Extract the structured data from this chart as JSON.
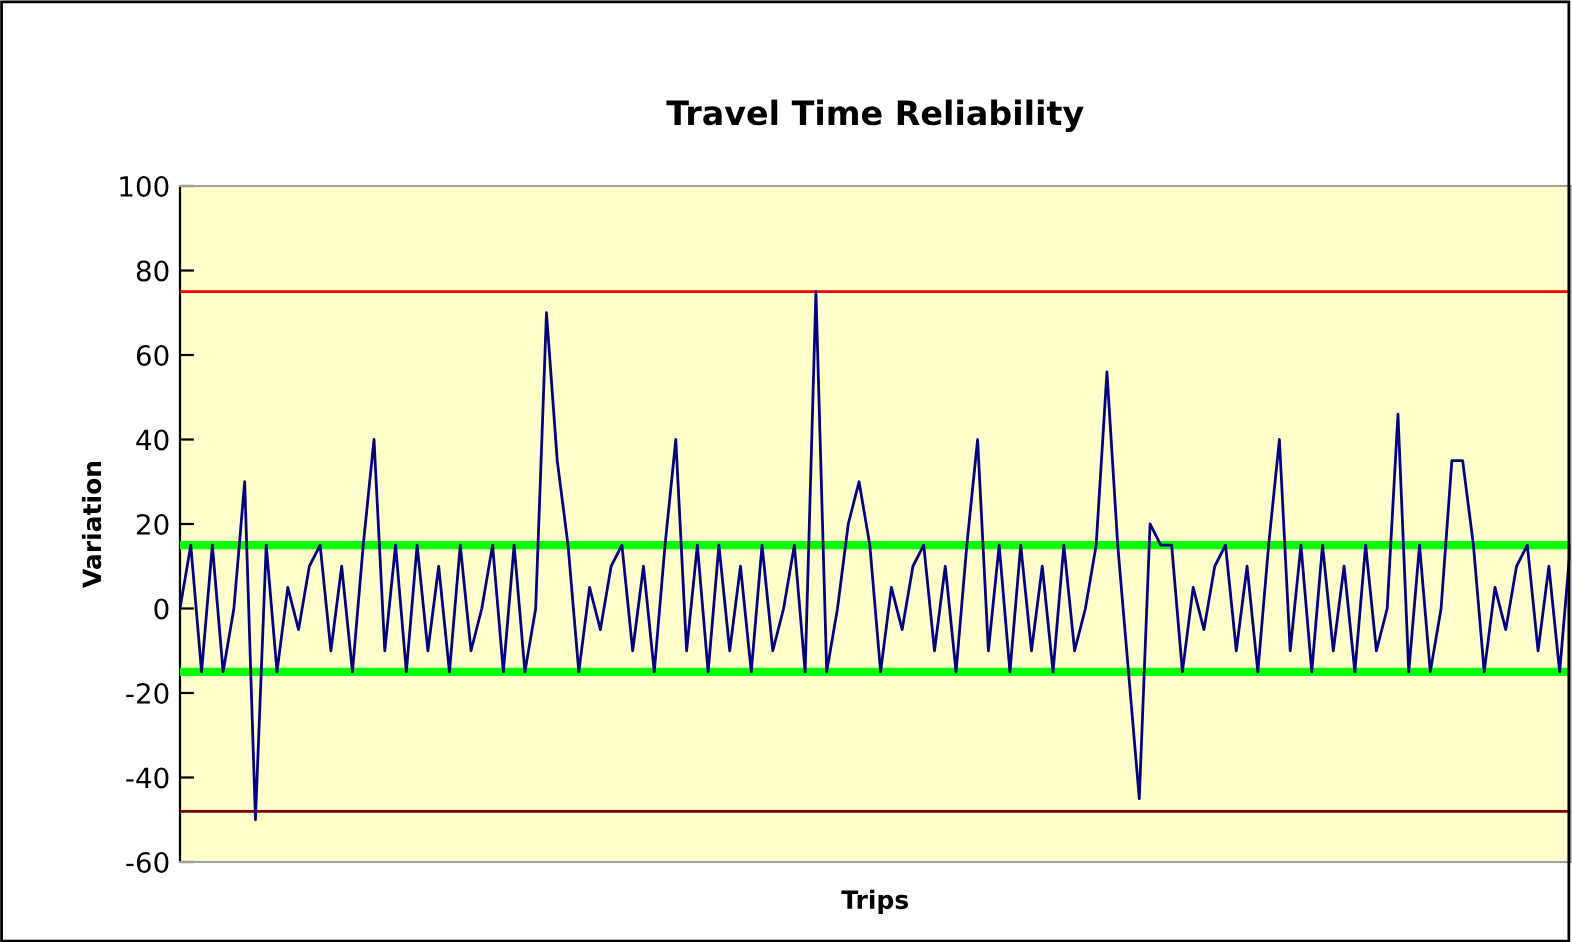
{
  "chart_data": {
    "type": "line",
    "title": "Travel Time Reliability",
    "xlabel": "Trips",
    "ylabel": "Variation",
    "categories": [
      null,
      null,
      null,
      null,
      null,
      null,
      null,
      null,
      null,
      null,
      null,
      null,
      null,
      null,
      null,
      null,
      null,
      null,
      null,
      null,
      null,
      null,
      null,
      null,
      null,
      null,
      null,
      null,
      null,
      null,
      null,
      null,
      null,
      null,
      null,
      null,
      null,
      null,
      null,
      null,
      null,
      null,
      null,
      null,
      null,
      null,
      null,
      null,
      null,
      null,
      null,
      null,
      null,
      null,
      null,
      null,
      null,
      null,
      null,
      null,
      null,
      null,
      null,
      null,
      null,
      null,
      null,
      null,
      null,
      null,
      null,
      null,
      null,
      null,
      null,
      null,
      null,
      null,
      null,
      null,
      null,
      null,
      null,
      null,
      null,
      null,
      null,
      null,
      null,
      null,
      null,
      null,
      null,
      null,
      null,
      null,
      null,
      null,
      null,
      null,
      null,
      null,
      null,
      null,
      null,
      null,
      null,
      null,
      null,
      null,
      null,
      null,
      null,
      null,
      null,
      null,
      null,
      null,
      null,
      null,
      null,
      null,
      null,
      null,
      null,
      null,
      null,
      null,
      null,
      null
    ],
    "series": [
      {
        "color": "#000080",
        "values": [
          0,
          15,
          -15,
          15,
          -15,
          0,
          30,
          -50,
          15,
          -15,
          5,
          -5,
          10,
          15,
          -10,
          10,
          -15,
          15,
          40,
          -10,
          15,
          -15,
          15,
          -10,
          10,
          -15,
          15,
          -10,
          0,
          15,
          -15,
          15,
          -15,
          0,
          70,
          35,
          15,
          -15,
          5,
          -5,
          10,
          15,
          -10,
          10,
          -15,
          15,
          40,
          -10,
          15,
          -15,
          15,
          -10,
          10,
          -15,
          15,
          -10,
          0,
          15,
          -15,
          75,
          -15,
          0,
          20,
          30,
          15,
          -15,
          5,
          -5,
          10,
          15,
          -10,
          10,
          -15,
          15,
          40,
          -10,
          15,
          -15,
          15,
          -10,
          10,
          -15,
          15,
          -10,
          0,
          15,
          56,
          15,
          -15,
          -45,
          20,
          15,
          15,
          -15,
          5,
          -5,
          10,
          15,
          -10,
          10,
          -15,
          15,
          40,
          -10,
          15,
          -15,
          15,
          -10,
          10,
          -15,
          15,
          -10,
          0,
          46,
          -15,
          15,
          -15,
          0,
          35,
          35,
          15,
          -15,
          5,
          -5,
          10,
          15,
          -10,
          10,
          -15,
          15
        ]
      }
    ],
    "ylim": [
      -60,
      100
    ],
    "yticks": [
      -60,
      -40,
      -20,
      0,
      20,
      40,
      60,
      80,
      100
    ],
    "ref_lines": [
      {
        "axis": "y",
        "value": 75,
        "color": "#ff0000"
      },
      {
        "axis": "y",
        "value": 15,
        "color": "#00ff00"
      },
      {
        "axis": "y",
        "value": -15,
        "color": "#00ff00"
      },
      {
        "axis": "y",
        "value": -48,
        "color": "#800000"
      }
    ],
    "tick_labels": "y",
    "grid": false,
    "marker": "none",
    "line_style": "solid"
  }
}
